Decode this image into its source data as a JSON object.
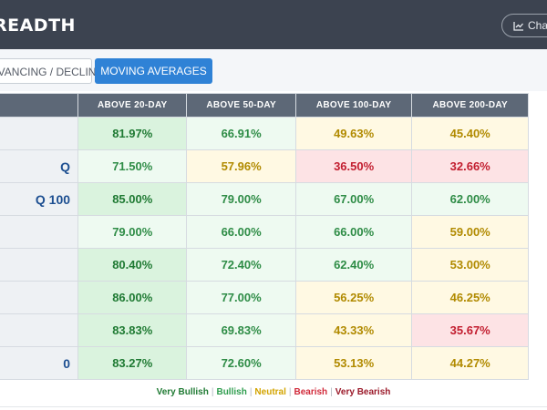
{
  "header": {
    "title": "BREADTH",
    "chart_button_label": "Chart"
  },
  "tabs": [
    {
      "label": "ADVANCING / DECLINING",
      "active": false
    },
    {
      "label": "MOVING AVERAGES",
      "active": true
    }
  ],
  "table": {
    "columns": [
      "ABOVE 20-DAY",
      "ABOVE 50-DAY",
      "ABOVE 100-DAY",
      "ABOVE 200-DAY"
    ],
    "rows": [
      {
        "name": "",
        "cells": [
          {
            "value": "81.97%",
            "level": "vb"
          },
          {
            "value": "66.91%",
            "level": "b"
          },
          {
            "value": "49.63%",
            "level": "n"
          },
          {
            "value": "45.40%",
            "level": "n"
          }
        ]
      },
      {
        "name": "Q",
        "cells": [
          {
            "value": "71.50%",
            "level": "b"
          },
          {
            "value": "57.96%",
            "level": "n"
          },
          {
            "value": "36.50%",
            "level": "br"
          },
          {
            "value": "32.66%",
            "level": "br"
          }
        ]
      },
      {
        "name": "Q 100",
        "cells": [
          {
            "value": "85.00%",
            "level": "vb"
          },
          {
            "value": "79.00%",
            "level": "b"
          },
          {
            "value": "67.00%",
            "level": "b"
          },
          {
            "value": "62.00%",
            "level": "b"
          }
        ]
      },
      {
        "name": "",
        "cells": [
          {
            "value": "79.00%",
            "level": "b"
          },
          {
            "value": "66.00%",
            "level": "b"
          },
          {
            "value": "66.00%",
            "level": "b"
          },
          {
            "value": "59.00%",
            "level": "n"
          }
        ]
      },
      {
        "name": "",
        "cells": [
          {
            "value": "80.40%",
            "level": "vb"
          },
          {
            "value": "72.40%",
            "level": "b"
          },
          {
            "value": "62.40%",
            "level": "b"
          },
          {
            "value": "53.00%",
            "level": "n"
          }
        ]
      },
      {
        "name": "",
        "cells": [
          {
            "value": "86.00%",
            "level": "vb"
          },
          {
            "value": "77.00%",
            "level": "b"
          },
          {
            "value": "56.25%",
            "level": "n"
          },
          {
            "value": "46.25%",
            "level": "n"
          }
        ]
      },
      {
        "name": "",
        "cells": [
          {
            "value": "83.83%",
            "level": "vb"
          },
          {
            "value": "69.83%",
            "level": "b"
          },
          {
            "value": "43.33%",
            "level": "n"
          },
          {
            "value": "35.67%",
            "level": "br"
          }
        ]
      },
      {
        "name": "0",
        "cells": [
          {
            "value": "83.27%",
            "level": "vb"
          },
          {
            "value": "72.60%",
            "level": "b"
          },
          {
            "value": "53.13%",
            "level": "n"
          },
          {
            "value": "44.27%",
            "level": "n"
          }
        ]
      }
    ]
  },
  "legend": [
    {
      "label": "Very Bullish",
      "color": "#1f7a33"
    },
    {
      "label": "Bullish",
      "color": "#2e9d4e"
    },
    {
      "label": "Neutral",
      "color": "#d3a400"
    },
    {
      "label": "Bearish",
      "color": "#d12a3a"
    },
    {
      "label": "Very Bearish",
      "color": "#9b1a2a"
    }
  ]
}
